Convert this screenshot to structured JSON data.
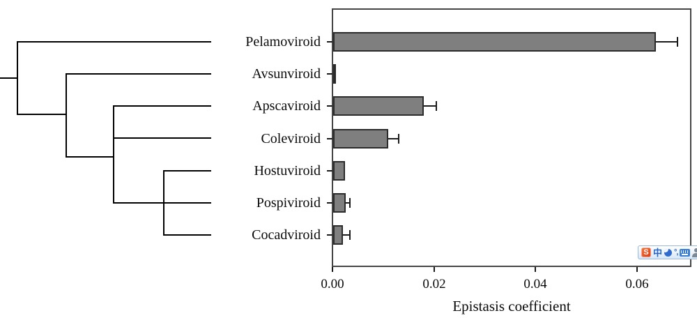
{
  "chart_data": {
    "type": "bar",
    "orientation": "horizontal",
    "title": "",
    "xlabel": "Epistasis coefficient",
    "ylabel": "",
    "categories": [
      "Pelamoviroid",
      "Avsunviroid",
      "Apscaviroid",
      "Coleviroid",
      "Hostuviroid",
      "Pospiviroid",
      "Cocadviroid"
    ],
    "values": [
      0.0637,
      0.0005,
      0.018,
      0.011,
      0.0025,
      0.0026,
      0.002
    ],
    "error_upper": [
      0.068,
      null,
      0.0205,
      0.013,
      null,
      0.0034,
      0.0034
    ],
    "xlim": [
      0,
      0.0707
    ],
    "x_ticks": [
      {
        "value": 0.0,
        "label": "0.00"
      },
      {
        "value": 0.02,
        "label": "0.02"
      },
      {
        "value": 0.04,
        "label": "0.04"
      },
      {
        "value": 0.06,
        "label": "0.06"
      }
    ],
    "grid": false,
    "legend": false,
    "bar_color": "#7f7f7f",
    "bar_border_color": "#2b2b2b",
    "left_panel": "cladogram of the seven viroid genera aligned to the bar rows"
  },
  "ime_toolbar": {
    "sogou_glyph": "S",
    "chinese_glyph": "中",
    "punct_glyph": "°,",
    "accent_color": "#2465c8",
    "logo_color": "#e8431a"
  }
}
